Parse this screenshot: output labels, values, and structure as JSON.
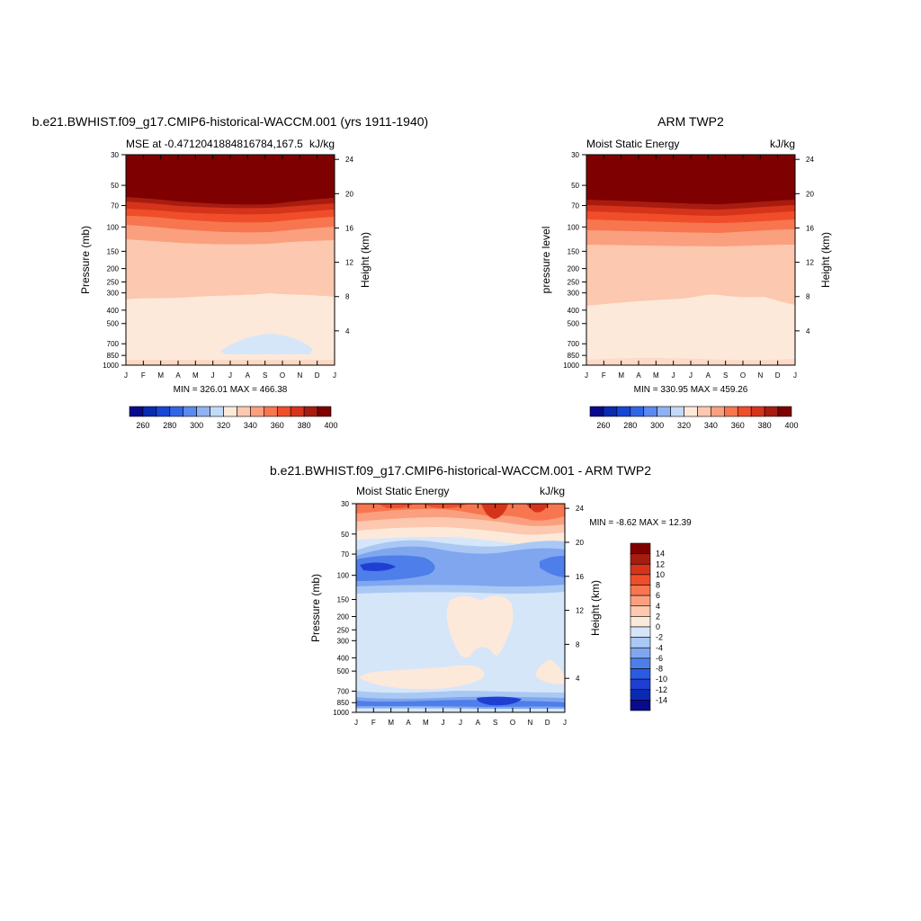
{
  "chart_data": [
    {
      "type": "heatmap",
      "title": "b.e21.BWHIST.f09_g17.CMIP6-historical-WACCM.001 (yrs 1911-1940)",
      "subtitle_left": "MSE at -0.4712041884816784,167.5",
      "units": "kJ/kg",
      "ylabel": "Pressure (mb)",
      "ylabel_right": "Height (km)",
      "x_tick_labels": [
        "J",
        "F",
        "M",
        "A",
        "M",
        "J",
        "J",
        "A",
        "S",
        "O",
        "N",
        "D",
        "J"
      ],
      "y_ticks": [
        30,
        50,
        70,
        100,
        150,
        200,
        250,
        300,
        400,
        500,
        700,
        850,
        1000
      ],
      "y_right_ticks": [
        4,
        8,
        12,
        16,
        20,
        24
      ],
      "stats": "MIN = 326.01 MAX = 466.38",
      "colorbar_ticks": [
        260,
        280,
        300,
        320,
        340,
        360,
        380,
        400
      ],
      "colors": [
        "#0a0a8e",
        "#0a2ab2",
        "#1546d6",
        "#2f66e8",
        "#5a8aee",
        "#8fb2f2",
        "#c3d9f8",
        "#fde9da",
        "#fcc8af",
        "#faa07f",
        "#f7764f",
        "#f04e2a",
        "#d5341b",
        "#a81c10",
        "#7f0000"
      ],
      "band_boundaries_pressure": [
        1000,
        950,
        320,
        130,
        90,
        70,
        60,
        48
      ],
      "band_colors": [
        "#fde9da",
        "#fde9da",
        "#fcc8af",
        "#faa07f",
        "#f7764f",
        "#f04e2a",
        "#d5341b",
        "#7f0000"
      ]
    },
    {
      "type": "heatmap",
      "title": "ARM TWP2",
      "subtitle_left": "Moist Static Energy",
      "units": "kJ/kg",
      "ylabel": "pressure level",
      "ylabel_right": "Height (km)",
      "x_tick_labels": [
        "J",
        "F",
        "M",
        "A",
        "M",
        "J",
        "J",
        "A",
        "S",
        "O",
        "N",
        "D",
        "J"
      ],
      "y_ticks": [
        30,
        50,
        70,
        100,
        150,
        200,
        250,
        300,
        400,
        500,
        700,
        850,
        1000
      ],
      "y_right_ticks": [
        4,
        8,
        12,
        16,
        20,
        24
      ],
      "stats": "MIN = 330.95 MAX = 459.26",
      "colorbar_ticks": [
        260,
        280,
        300,
        320,
        340,
        360,
        380,
        400
      ],
      "colors": [
        "#0a0a8e",
        "#0a2ab2",
        "#1546d6",
        "#2f66e8",
        "#5a8aee",
        "#8fb2f2",
        "#c3d9f8",
        "#fde9da",
        "#fcc8af",
        "#faa07f",
        "#f7764f",
        "#f04e2a",
        "#d5341b",
        "#a81c10",
        "#7f0000"
      ]
    },
    {
      "type": "heatmap",
      "title": "b.e21.BWHIST.f09_g17.CMIP6-historical-WACCM.001 - ARM TWP2",
      "subtitle_left": "Moist Static Energy",
      "units": "kJ/kg",
      "ylabel": "Pressure (mb)",
      "ylabel_right": "Height (km)",
      "x_tick_labels": [
        "J",
        "F",
        "M",
        "A",
        "M",
        "J",
        "J",
        "A",
        "S",
        "O",
        "N",
        "D",
        "J"
      ],
      "y_ticks": [
        30,
        50,
        70,
        100,
        150,
        200,
        250,
        300,
        400,
        500,
        700,
        850,
        1000
      ],
      "y_right_ticks": [
        4,
        8,
        12,
        16,
        20,
        24
      ],
      "stats": "MIN =  -8.62 MAX =  12.39",
      "colorbar_ticks": [
        14,
        12,
        10,
        8,
        6,
        4,
        2,
        0,
        -2,
        -4,
        -6,
        -8,
        -10,
        -12,
        -14
      ],
      "colors": [
        "#7f0000",
        "#a81c10",
        "#d5341b",
        "#f04e2a",
        "#f7764f",
        "#faa07f",
        "#fcc8af",
        "#fde9da",
        "#d6e6f9",
        "#aac8f4",
        "#7fa6ef",
        "#4e7ee9",
        "#2a5ce3",
        "#1f3fd2",
        "#0a2ab2",
        "#0a0a8e"
      ]
    }
  ]
}
